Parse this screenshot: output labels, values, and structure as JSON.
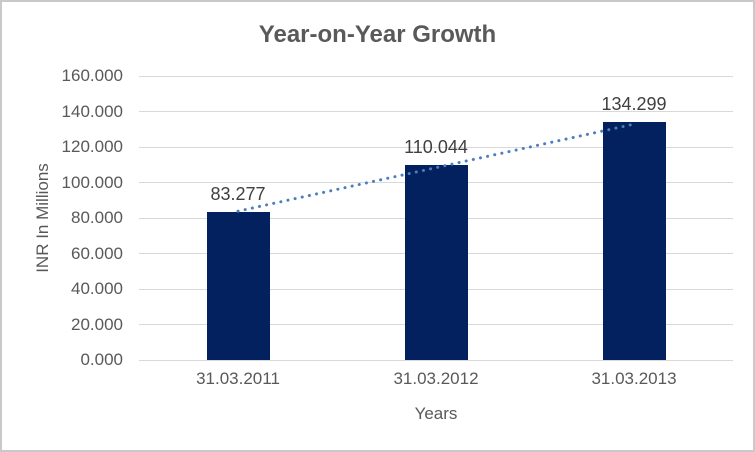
{
  "chart_data": {
    "type": "bar",
    "title": "Year-on-Year Growth",
    "xlabel": "Years",
    "ylabel": "INR In Millions",
    "categories": [
      "31.03.2011",
      "31.03.2012",
      "31.03.2013"
    ],
    "values": [
      83.277,
      110.044,
      134.299
    ],
    "data_labels": [
      "83.277",
      "110.044",
      "134.299"
    ],
    "ylim": [
      0,
      160
    ],
    "ytick_step": 20,
    "ytick_labels_top_to_bottom": [
      "160.000",
      "140.000",
      "120.000",
      "100.000",
      "80.000",
      "60.000",
      "40.000",
      "20.000",
      "0.000"
    ],
    "grid": true,
    "legend": "none",
    "trendline": {
      "style": "dotted",
      "color": "#4a7ebd",
      "from_category": "31.03.2011",
      "to_category": "31.03.2013"
    },
    "colors": {
      "bar": "#02215e",
      "gridline": "#d9d9d9",
      "title": "#595959",
      "axis_text": "#595959",
      "data_label": "#404040",
      "frame_border": "#c9c9c9",
      "background": "#ffffff"
    }
  }
}
